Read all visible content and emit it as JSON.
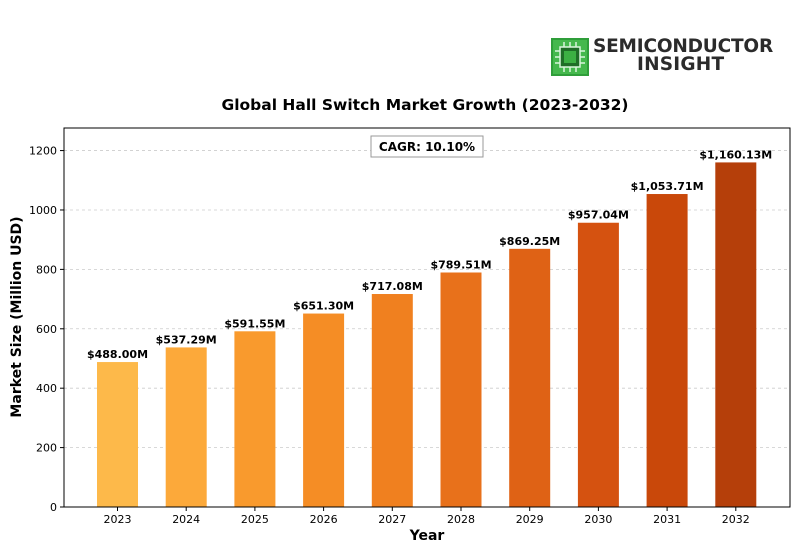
{
  "brand": {
    "line1": "SEMICONDUCTOR",
    "line2": "INSIGHT",
    "icon": "chip-icon",
    "colors": {
      "green": "#3cb043",
      "dark": "#2b2b2b"
    }
  },
  "chart_data": {
    "type": "bar",
    "title": "Global Hall Switch Market Growth (2023-2032)",
    "xlabel": "Year",
    "ylabel": "Market Size (Million USD)",
    "annotation": "CAGR: 10.10%",
    "categories": [
      "2023",
      "2024",
      "2025",
      "2026",
      "2027",
      "2028",
      "2029",
      "2030",
      "2031",
      "2032"
    ],
    "values": [
      488.0,
      537.29,
      591.55,
      651.3,
      717.08,
      789.51,
      869.25,
      957.04,
      1053.71,
      1160.13
    ],
    "data_labels": [
      "$488.00M",
      "$537.29M",
      "$591.55M",
      "$651.30M",
      "$717.08M",
      "$789.51M",
      "$869.25M",
      "$957.04M",
      "$1,053.71M",
      "$1,160.13M"
    ],
    "ylim": [
      0,
      1276
    ],
    "yticks": [
      0,
      200,
      400,
      600,
      800,
      1000,
      1200
    ],
    "grid": "y-dashed",
    "bar_colors": [
      "#fdb94a",
      "#fca93a",
      "#f99a2d",
      "#f58d25",
      "#f0801f",
      "#e8711b",
      "#df6215",
      "#d55210",
      "#c9480a",
      "#b53f0a"
    ]
  }
}
